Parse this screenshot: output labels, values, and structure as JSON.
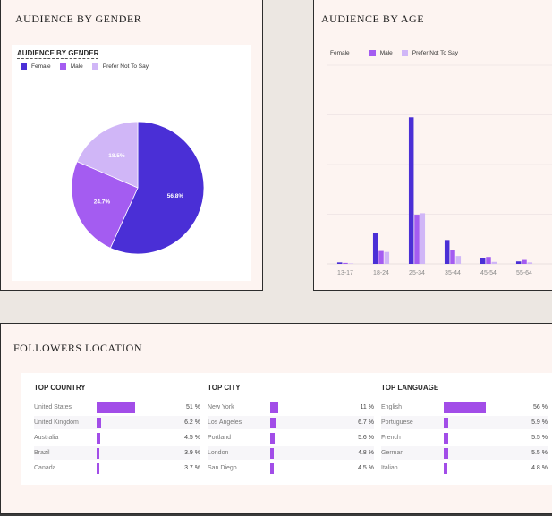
{
  "colors": {
    "female": "#4a2fd6",
    "male": "#a45cf1",
    "prefer": "#d0b6f7",
    "bar": "#a24de8"
  },
  "gender": {
    "card_title": "AUDIENCE BY GENDER",
    "chart_title": "AUDIENCE BY GENDER",
    "legend": [
      "Female",
      "Male",
      "Prefer Not To Say"
    ]
  },
  "age": {
    "card_title": "AUDIENCE BY AGE",
    "legend": [
      "Female",
      "Male",
      "Prefer Not To Say"
    ]
  },
  "chart_data": [
    {
      "type": "pie",
      "title": "AUDIENCE BY GENDER",
      "categories": [
        "Female",
        "Male",
        "Prefer Not To Say"
      ],
      "values": [
        56.8,
        24.7,
        18.5
      ],
      "labels": [
        "56.8%",
        "24.7%",
        "18.5%"
      ],
      "legend_position": "top-left"
    },
    {
      "type": "bar",
      "title": "AUDIENCE BY AGE",
      "categories": [
        "13-17",
        "18-24",
        "25-34",
        "35-44",
        "45-54",
        "55-64"
      ],
      "series": [
        {
          "name": "Female",
          "values": [
            0.3,
            6.2,
            29.5,
            4.8,
            1.2,
            0.5
          ]
        },
        {
          "name": "Male",
          "values": [
            0.2,
            2.6,
            9.9,
            2.8,
            1.4,
            0.8
          ]
        },
        {
          "name": "Prefer Not To Say",
          "values": [
            0.1,
            2.4,
            10.2,
            1.6,
            0.4,
            0.3
          ]
        }
      ],
      "ylim": [
        0,
        40
      ],
      "grid": true,
      "legend_position": "top-left"
    }
  ],
  "location": {
    "card_title": "FOLLOWERS LOCATION",
    "columns": [
      {
        "heading": "TOP COUNTRY",
        "rows": [
          {
            "name": "United States",
            "pct_label": "51 %",
            "value": 51
          },
          {
            "name": "United Kingdom",
            "pct_label": "6.2 %",
            "value": 6.2
          },
          {
            "name": "Australia",
            "pct_label": "4.5 %",
            "value": 4.5
          },
          {
            "name": "Brazil",
            "pct_label": "3.9 %",
            "value": 3.9
          },
          {
            "name": "Canada",
            "pct_label": "3.7 %",
            "value": 3.7
          }
        ]
      },
      {
        "heading": "TOP CITY",
        "rows": [
          {
            "name": "New York",
            "pct_label": "11 %",
            "value": 11
          },
          {
            "name": "Los Angeles",
            "pct_label": "6.7 %",
            "value": 6.7
          },
          {
            "name": "Portland",
            "pct_label": "5.6 %",
            "value": 5.6
          },
          {
            "name": "London",
            "pct_label": "4.8 %",
            "value": 4.8
          },
          {
            "name": "San Diego",
            "pct_label": "4.5 %",
            "value": 4.5
          }
        ]
      },
      {
        "heading": "TOP LANGUAGE",
        "rows": [
          {
            "name": "English",
            "pct_label": "56 %",
            "value": 56
          },
          {
            "name": "Portuguese",
            "pct_label": "5.9 %",
            "value": 5.9
          },
          {
            "name": "French",
            "pct_label": "5.5 %",
            "value": 5.5
          },
          {
            "name": "German",
            "pct_label": "5.5 %",
            "value": 5.5
          },
          {
            "name": "Italian",
            "pct_label": "4.8 %",
            "value": 4.8
          }
        ]
      }
    ]
  }
}
